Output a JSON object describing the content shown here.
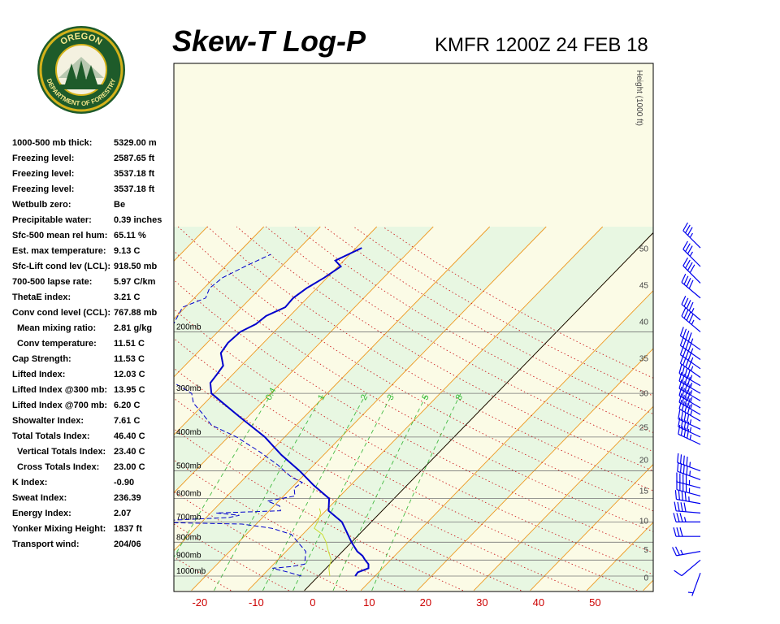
{
  "header": {
    "title": "Skew-T Log-P",
    "station": "KMFR 1200Z 24 FEB 18",
    "logo_top": "OREGON",
    "logo_bottom": "DEPARTMENT OF FORESTRY"
  },
  "stats": [
    {
      "label": "1000-500 mb thick:",
      "value": "5329.00 m",
      "indent": false
    },
    {
      "label": "Freezing level:",
      "value": "2587.65 ft",
      "indent": false
    },
    {
      "label": "Freezing level:",
      "value": "3537.18 ft",
      "indent": false
    },
    {
      "label": "Freezing level:",
      "value": "3537.18 ft",
      "indent": false
    },
    {
      "label": "Wetbulb zero:",
      "value": "Be",
      "indent": false
    },
    {
      "label": "Precipitable water:",
      "value": "0.39 inches",
      "indent": false
    },
    {
      "label": "Sfc-500 mean rel hum:",
      "value": "65.11 %",
      "indent": false
    },
    {
      "label": "Est. max temperature:",
      "value": "9.13 C",
      "indent": false
    },
    {
      "label": "Sfc-Lift cond lev (LCL):",
      "value": "918.50 mb",
      "indent": false
    },
    {
      "label": "700-500 lapse rate:",
      "value": "5.97 C/km",
      "indent": false
    },
    {
      "label": "ThetaE index:",
      "value": "3.21 C",
      "indent": false
    },
    {
      "label": "Conv cond level (CCL):",
      "value": "767.88 mb",
      "indent": false
    },
    {
      "label": "Mean mixing ratio:",
      "value": "2.81 g/kg",
      "indent": true
    },
    {
      "label": "Conv temperature:",
      "value": "11.51 C",
      "indent": true
    },
    {
      "label": "Cap Strength:",
      "value": "11.53 C",
      "indent": false
    },
    {
      "label": "Lifted Index:",
      "value": "12.03 C",
      "indent": false
    },
    {
      "label": "Lifted Index @300 mb:",
      "value": "13.95 C",
      "indent": false
    },
    {
      "label": "Lifted Index @700 mb:",
      "value": "6.20 C",
      "indent": false
    },
    {
      "label": "Showalter Index:",
      "value": "7.61 C",
      "indent": false
    },
    {
      "label": "Total Totals Index:",
      "value": "46.40 C",
      "indent": false
    },
    {
      "label": "Vertical Totals Index:",
      "value": "23.40 C",
      "indent": true
    },
    {
      "label": "Cross Totals Index:",
      "value": "23.00 C",
      "indent": true
    },
    {
      "label": "K Index:",
      "value": "-0.90",
      "indent": false
    },
    {
      "label": "Sweat Index:",
      "value": "236.39",
      "indent": false
    },
    {
      "label": "Energy Index:",
      "value": "2.07",
      "indent": false
    },
    {
      "label": "Yonker Mixing Height:",
      "value": "1837 ft",
      "indent": false
    },
    {
      "label": "Transport wind:",
      "value": "204/06",
      "indent": false
    }
  ],
  "chart_data": {
    "type": "line",
    "title": "Skew-T Log-P",
    "xlabel": "",
    "ylabel": "",
    "pressure_levels": [
      {
        "p": 200,
        "label": "200mb"
      },
      {
        "p": 300,
        "label": "300mb"
      },
      {
        "p": 400,
        "label": "400mb"
      },
      {
        "p": 500,
        "label": "500mb"
      },
      {
        "p": 600,
        "label": "600mb"
      },
      {
        "p": 700,
        "label": "700mb"
      },
      {
        "p": 800,
        "label": "800mb"
      },
      {
        "p": 900,
        "label": "900mb"
      },
      {
        "p": 1000,
        "label": "1000mb"
      }
    ],
    "temperature_ticks": [
      -20,
      -10,
      0,
      10,
      20,
      30,
      40,
      50
    ],
    "temperature_tick_labels": [
      "-20",
      "-10",
      "0",
      "10",
      "20",
      "30",
      "40",
      "50"
    ],
    "height_axis_label": "Height (1000 ft)",
    "height_ticks": [
      "0",
      "5",
      "10",
      "15",
      "20",
      "25",
      "30",
      "35",
      "40",
      "45",
      "50"
    ],
    "height_tick_values": [
      0,
      5,
      10,
      15,
      20,
      25,
      30,
      35,
      40,
      45,
      50
    ],
    "mixing_ratio_labels": [
      "0.4",
      "1",
      "2",
      "3",
      "5",
      "8"
    ],
    "mixing_ratio_values": [
      0.4,
      1,
      2,
      3,
      5,
      8
    ],
    "series": [
      {
        "kind": "temperature",
        "color": "#0000cc",
        "points": [
          {
            "p": 1000,
            "t": 6.5
          },
          {
            "p": 975,
            "t": 6.3
          },
          {
            "p": 950,
            "t": 7.5
          },
          {
            "p": 925,
            "t": 6.8
          },
          {
            "p": 900,
            "t": 5.5
          },
          {
            "p": 875,
            "t": 4.3
          },
          {
            "p": 850,
            "t": 2.6
          },
          {
            "p": 800,
            "t": 0.0
          },
          {
            "p": 750,
            "t": -2.5
          },
          {
            "p": 700,
            "t": -5.2
          },
          {
            "p": 650,
            "t": -9.5
          },
          {
            "p": 600,
            "t": -11.5
          },
          {
            "p": 550,
            "t": -16.5
          },
          {
            "p": 500,
            "t": -21.5
          },
          {
            "p": 450,
            "t": -27.5
          },
          {
            "p": 400,
            "t": -33.5
          },
          {
            "p": 350,
            "t": -41.5
          },
          {
            "p": 300,
            "t": -50.5
          },
          {
            "p": 280,
            "t": -52.5
          },
          {
            "p": 265,
            "t": -52.8
          },
          {
            "p": 250,
            "t": -53.2
          },
          {
            "p": 230,
            "t": -55.8
          },
          {
            "p": 215,
            "t": -56.3
          },
          {
            "p": 200,
            "t": -56.0
          },
          {
            "p": 190,
            "t": -54.6
          },
          {
            "p": 180,
            "t": -54.2
          },
          {
            "p": 170,
            "t": -52.3
          },
          {
            "p": 160,
            "t": -52.5
          },
          {
            "p": 150,
            "t": -51.8
          },
          {
            "p": 140,
            "t": -50.5
          },
          {
            "p": 130,
            "t": -49.5
          },
          {
            "p": 125,
            "t": -51.5
          },
          {
            "p": 115,
            "t": -49.0
          }
        ]
      },
      {
        "kind": "dewpoint",
        "color": "#0000cc",
        "points": [
          {
            "p": 1000,
            "t": -3.0
          },
          {
            "p": 975,
            "t": -6.0
          },
          {
            "p": 950,
            "t": -9.5
          },
          {
            "p": 940,
            "t": -6.5
          },
          {
            "p": 925,
            "t": -4.5
          },
          {
            "p": 850,
            "t": -6.5
          },
          {
            "p": 800,
            "t": -9.5
          },
          {
            "p": 760,
            "t": -12.0
          },
          {
            "p": 730,
            "t": -16.5
          },
          {
            "p": 710,
            "t": -22.5
          },
          {
            "p": 700,
            "t": -42.0
          },
          {
            "p": 690,
            "t": -34.0
          },
          {
            "p": 680,
            "t": -26.0
          },
          {
            "p": 670,
            "t": -24.5
          },
          {
            "p": 660,
            "t": -29.0
          },
          {
            "p": 650,
            "t": -18.0
          },
          {
            "p": 630,
            "t": -19.0
          },
          {
            "p": 610,
            "t": -22.0
          },
          {
            "p": 590,
            "t": -18.0
          },
          {
            "p": 560,
            "t": -19.5
          },
          {
            "p": 540,
            "t": -19.0
          },
          {
            "p": 520,
            "t": -22.0
          },
          {
            "p": 480,
            "t": -26.5
          },
          {
            "p": 440,
            "t": -32.0
          },
          {
            "p": 400,
            "t": -38.5
          },
          {
            "p": 370,
            "t": -45.0
          },
          {
            "p": 340,
            "t": -49.0
          },
          {
            "p": 320,
            "t": -52.0
          },
          {
            "p": 300,
            "t": -54.0
          },
          {
            "p": 270,
            "t": -61.5
          },
          {
            "p": 250,
            "t": -64.5
          },
          {
            "p": 220,
            "t": -66.5
          },
          {
            "p": 200,
            "t": -68.5
          },
          {
            "p": 185,
            "t": -69.5
          },
          {
            "p": 170,
            "t": -70.5
          },
          {
            "p": 160,
            "t": -68.0
          },
          {
            "p": 150,
            "t": -69.0
          },
          {
            "p": 140,
            "t": -68.5
          },
          {
            "p": 130,
            "t": -66.5
          },
          {
            "p": 120,
            "t": -64.0
          }
        ]
      },
      {
        "kind": "wetbulb",
        "color": "#ccdd33",
        "points": [
          {
            "p": 1000,
            "t": 2.0
          },
          {
            "p": 950,
            "t": 0.5
          },
          {
            "p": 900,
            "t": -0.5
          },
          {
            "p": 850,
            "t": -2.5
          },
          {
            "p": 800,
            "t": -4.5
          },
          {
            "p": 760,
            "t": -6.5
          },
          {
            "p": 730,
            "t": -9.0
          },
          {
            "p": 700,
            "t": -9.5
          },
          {
            "p": 680,
            "t": -10.0
          },
          {
            "p": 660,
            "t": -10.5
          },
          {
            "p": 640,
            "t": -11.5
          }
        ]
      }
    ],
    "wind_barbs": [
      {
        "p": 980,
        "dir": 200,
        "spd": 5
      },
      {
        "p": 900,
        "dir": 230,
        "spd": 10
      },
      {
        "p": 850,
        "dir": 260,
        "spd": 25
      },
      {
        "p": 770,
        "dir": 270,
        "spd": 30
      },
      {
        "p": 700,
        "dir": 270,
        "spd": 35
      },
      {
        "p": 660,
        "dir": 275,
        "spd": 40
      },
      {
        "p": 620,
        "dir": 280,
        "spd": 45
      },
      {
        "p": 590,
        "dir": 285,
        "spd": 45
      },
      {
        "p": 560,
        "dir": 285,
        "spd": 45
      },
      {
        "p": 530,
        "dir": 290,
        "spd": 45
      },
      {
        "p": 500,
        "dir": 290,
        "spd": 45
      },
      {
        "p": 420,
        "dir": 295,
        "spd": 45
      },
      {
        "p": 400,
        "dir": 295,
        "spd": 45
      },
      {
        "p": 380,
        "dir": 295,
        "spd": 45
      },
      {
        "p": 360,
        "dir": 300,
        "spd": 45
      },
      {
        "p": 345,
        "dir": 300,
        "spd": 45
      },
      {
        "p": 330,
        "dir": 300,
        "spd": 45
      },
      {
        "p": 315,
        "dir": 300,
        "spd": 45
      },
      {
        "p": 300,
        "dir": 300,
        "spd": 45
      },
      {
        "p": 285,
        "dir": 300,
        "spd": 45
      },
      {
        "p": 270,
        "dir": 305,
        "spd": 45
      },
      {
        "p": 255,
        "dir": 305,
        "spd": 45
      },
      {
        "p": 240,
        "dir": 305,
        "spd": 45
      },
      {
        "p": 225,
        "dir": 305,
        "spd": 45
      },
      {
        "p": 200,
        "dir": 310,
        "spd": 45
      },
      {
        "p": 185,
        "dir": 310,
        "spd": 45
      },
      {
        "p": 160,
        "dir": 310,
        "spd": 40
      },
      {
        "p": 145,
        "dir": 315,
        "spd": 40
      },
      {
        "p": 130,
        "dir": 315,
        "spd": 35
      },
      {
        "p": 115,
        "dir": 315,
        "spd": 35
      }
    ]
  }
}
